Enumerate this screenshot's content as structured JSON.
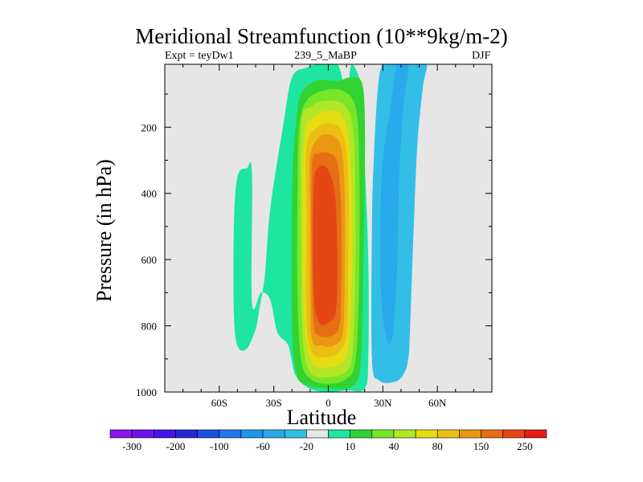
{
  "chart_data": {
    "type": "contour",
    "title": "Meridional Streamfunction (10**9kg/m-2)",
    "subtitle_left": "Expt = teyDw1",
    "subtitle_center": "239_5_MaBP",
    "subtitle_right": "DJF",
    "xlabel": "Latitude",
    "ylabel": "Pressure (in hPa)",
    "xlim": [
      -90,
      90
    ],
    "ylim": [
      1000,
      10
    ],
    "xticks": [
      {
        "value": -60,
        "label": "60S"
      },
      {
        "value": -30,
        "label": "30S"
      },
      {
        "value": 0,
        "label": "0"
      },
      {
        "value": 30,
        "label": "30N"
      },
      {
        "value": 60,
        "label": "60N"
      }
    ],
    "yticks": [
      {
        "value": 200,
        "label": "200"
      },
      {
        "value": 400,
        "label": "400"
      },
      {
        "value": 600,
        "label": "600"
      },
      {
        "value": 800,
        "label": "800"
      },
      {
        "value": 1000,
        "label": "1000"
      }
    ],
    "missing_color": "#e6e6e6",
    "colorbar": {
      "levels": [
        -300,
        -250,
        -200,
        -150,
        -100,
        -80,
        -60,
        -40,
        -20,
        -10,
        10,
        20,
        40,
        60,
        80,
        100,
        150,
        200,
        250,
        300
      ],
      "labels": [
        "-300",
        "-200",
        "-100",
        "-60",
        "-20",
        "10",
        "40",
        "80",
        "150",
        "250"
      ],
      "colors": [
        "#8c14e6",
        "#6e14e6",
        "#4614e6",
        "#2828d2",
        "#1e50dc",
        "#1e78e6",
        "#1e96eb",
        "#28aaeb",
        "#32bee6",
        "#e6e6e6",
        "#1ee6a0",
        "#32d232",
        "#78e628",
        "#b4e628",
        "#e6dc14",
        "#ebbe14",
        "#eb9614",
        "#e66e14",
        "#e64614",
        "#e61e14"
      ]
    },
    "contours": [
      {
        "value": 10,
        "color": "#1ee6a0",
        "points": [
          [
            -45,
            325
          ],
          [
            -42,
            340
          ],
          [
            -42,
            730
          ],
          [
            -37,
            700
          ],
          [
            -32,
            720
          ],
          [
            -28,
            820
          ],
          [
            -22,
            860
          ],
          [
            -18,
            950
          ],
          [
            -10,
            990
          ],
          [
            0,
            1000
          ],
          [
            10,
            995
          ],
          [
            20,
            990
          ],
          [
            22,
            900
          ],
          [
            22,
            600
          ],
          [
            20,
            300
          ],
          [
            19,
            100
          ],
          [
            13,
            10
          ],
          [
            10,
            100
          ],
          [
            5,
            10
          ],
          [
            -5,
            10
          ],
          [
            -12,
            20
          ],
          [
            -20,
            50
          ],
          [
            -25,
            200
          ],
          [
            -32,
            450
          ],
          [
            -35,
            650
          ],
          [
            -38,
            750
          ],
          [
            -40,
            810
          ],
          [
            -45,
            870
          ],
          [
            -50,
            860
          ],
          [
            -52,
            760
          ],
          [
            -52,
            500
          ],
          [
            -50,
            350
          ]
        ]
      },
      {
        "value": 20,
        "color": "#32d232",
        "points": [
          [
            -18,
            200
          ],
          [
            -15,
            100
          ],
          [
            -7,
            60
          ],
          [
            5,
            60
          ],
          [
            12,
            50
          ],
          [
            18,
            60
          ],
          [
            20,
            150
          ],
          [
            20,
            400
          ],
          [
            19,
            700
          ],
          [
            18,
            900
          ],
          [
            14,
            980
          ],
          [
            0,
            990
          ],
          [
            -14,
            975
          ],
          [
            -18,
            930
          ],
          [
            -20,
            800
          ],
          [
            -20,
            400
          ]
        ]
      },
      {
        "value": 40,
        "color": "#78e628",
        "points": [
          [
            -16,
            200
          ],
          [
            -12,
            120
          ],
          [
            -3,
            90
          ],
          [
            8,
            90
          ],
          [
            15,
            140
          ],
          [
            17,
            300
          ],
          [
            17,
            650
          ],
          [
            15,
            900
          ],
          [
            10,
            960
          ],
          [
            0,
            975
          ],
          [
            -10,
            960
          ],
          [
            -15,
            900
          ],
          [
            -17,
            700
          ],
          [
            -17,
            400
          ]
        ]
      },
      {
        "value": 60,
        "color": "#b4e628",
        "points": [
          [
            -15,
            200
          ],
          [
            -10,
            140
          ],
          [
            0,
            120
          ],
          [
            10,
            140
          ],
          [
            14,
            240
          ],
          [
            15,
            500
          ],
          [
            14,
            820
          ],
          [
            11,
            930
          ],
          [
            0,
            955
          ],
          [
            -10,
            940
          ],
          [
            -14,
            840
          ],
          [
            -15,
            600
          ]
        ]
      },
      {
        "value": 80,
        "color": "#e6dc14",
        "points": [
          [
            -13,
            230
          ],
          [
            -8,
            170
          ],
          [
            0,
            150
          ],
          [
            8,
            170
          ],
          [
            12,
            280
          ],
          [
            13,
            550
          ],
          [
            12,
            800
          ],
          [
            9,
            900
          ],
          [
            0,
            925
          ],
          [
            -9,
            910
          ],
          [
            -13,
            800
          ],
          [
            -14,
            550
          ]
        ]
      },
      {
        "value": 100,
        "color": "#ebbe14",
        "points": [
          [
            -12,
            260
          ],
          [
            -6,
            200
          ],
          [
            2,
            190
          ],
          [
            8,
            220
          ],
          [
            11,
            350
          ],
          [
            11,
            600
          ],
          [
            10,
            820
          ],
          [
            6,
            880
          ],
          [
            -2,
            895
          ],
          [
            -9,
            880
          ],
          [
            -12,
            780
          ],
          [
            -12,
            500
          ]
        ]
      },
      {
        "value": 150,
        "color": "#eb9614",
        "points": [
          [
            -10,
            290
          ],
          [
            -5,
            230
          ],
          [
            2,
            225
          ],
          [
            7,
            260
          ],
          [
            9,
            400
          ],
          [
            9,
            650
          ],
          [
            8,
            820
          ],
          [
            3,
            860
          ],
          [
            -4,
            860
          ],
          [
            -9,
            840
          ],
          [
            -10,
            700
          ],
          [
            -10,
            450
          ]
        ]
      },
      {
        "value": 200,
        "color": "#e66e14",
        "points": [
          [
            -9,
            320
          ],
          [
            -5,
            280
          ],
          [
            1,
            280
          ],
          [
            5,
            310
          ],
          [
            7,
            450
          ],
          [
            7,
            700
          ],
          [
            6,
            800
          ],
          [
            2,
            830
          ],
          [
            -5,
            830
          ],
          [
            -8,
            800
          ],
          [
            -9,
            650
          ]
        ]
      },
      {
        "value": 250,
        "color": "#e64614",
        "points": [
          [
            -8,
            380
          ],
          [
            -5,
            320
          ],
          [
            0,
            330
          ],
          [
            4,
            420
          ],
          [
            5,
            650
          ],
          [
            4,
            760
          ],
          [
            0,
            790
          ],
          [
            -5,
            790
          ],
          [
            -8,
            700
          ]
        ]
      },
      {
        "value": -10,
        "color": "#32bee6",
        "points": [
          [
            30,
            10
          ],
          [
            38,
            10
          ],
          [
            46,
            10
          ],
          [
            54,
            10
          ],
          [
            52,
            80
          ],
          [
            49,
            250
          ],
          [
            47,
            500
          ],
          [
            46,
            650
          ],
          [
            45,
            800
          ],
          [
            44,
            900
          ],
          [
            41,
            950
          ],
          [
            36,
            970
          ],
          [
            28,
            965
          ],
          [
            24,
            900
          ],
          [
            24,
            500
          ],
          [
            25,
            300
          ],
          [
            27,
            100
          ]
        ]
      },
      {
        "value": -20,
        "color": "#28aaeb",
        "points": [
          [
            38,
            10
          ],
          [
            44,
            10
          ],
          [
            41,
            150
          ],
          [
            39,
            350
          ],
          [
            38,
            600
          ],
          [
            36,
            800
          ],
          [
            34,
            850
          ],
          [
            32,
            840
          ],
          [
            29,
            700
          ],
          [
            29,
            400
          ],
          [
            31,
            250
          ],
          [
            34,
            150
          ]
        ]
      }
    ]
  }
}
